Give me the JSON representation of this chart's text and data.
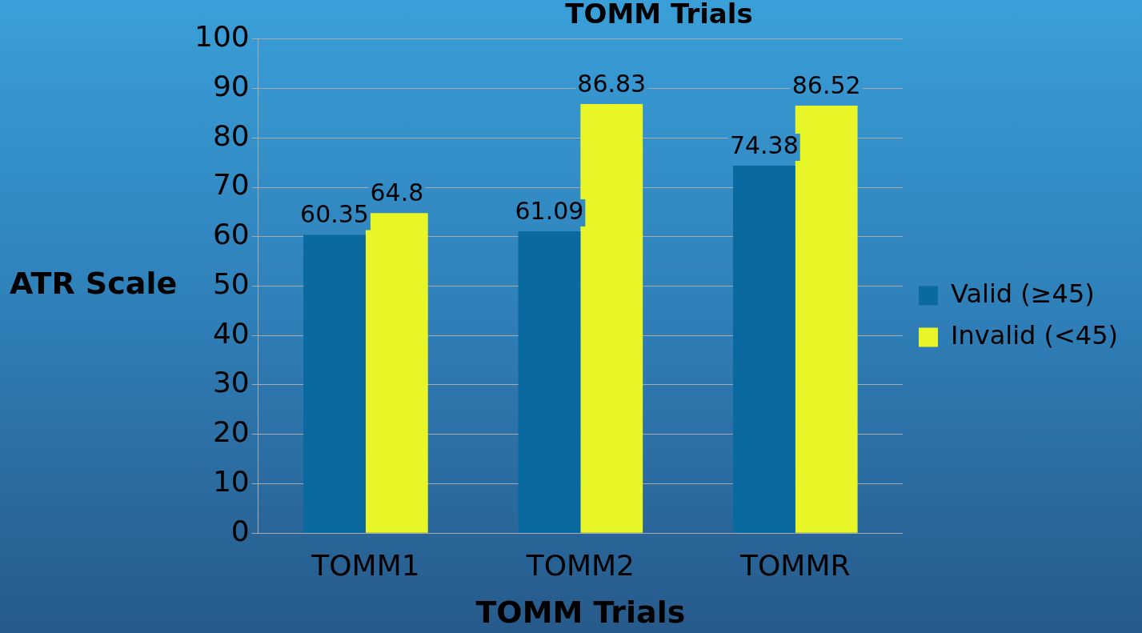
{
  "chart_data": {
    "type": "bar",
    "title": "TOMM Trials",
    "xlabel": "TOMM Trials",
    "ylabel": "ATR Scale",
    "categories": [
      "TOMM1",
      "TOMM2",
      "TOMMR"
    ],
    "series": [
      {
        "name": "Valid (≥45)",
        "color": "#0a6aa0",
        "values": [
          60.35,
          61.09,
          74.38
        ]
      },
      {
        "name": "Invalid (<45)",
        "color": "#e8f526",
        "values": [
          64.8,
          86.83,
          86.52
        ]
      }
    ],
    "ylim": [
      0,
      100
    ],
    "yticks": [
      0,
      10,
      20,
      30,
      40,
      50,
      60,
      70,
      80,
      90,
      100
    ],
    "grid": "y",
    "legend": "right",
    "data_labels": true
  }
}
